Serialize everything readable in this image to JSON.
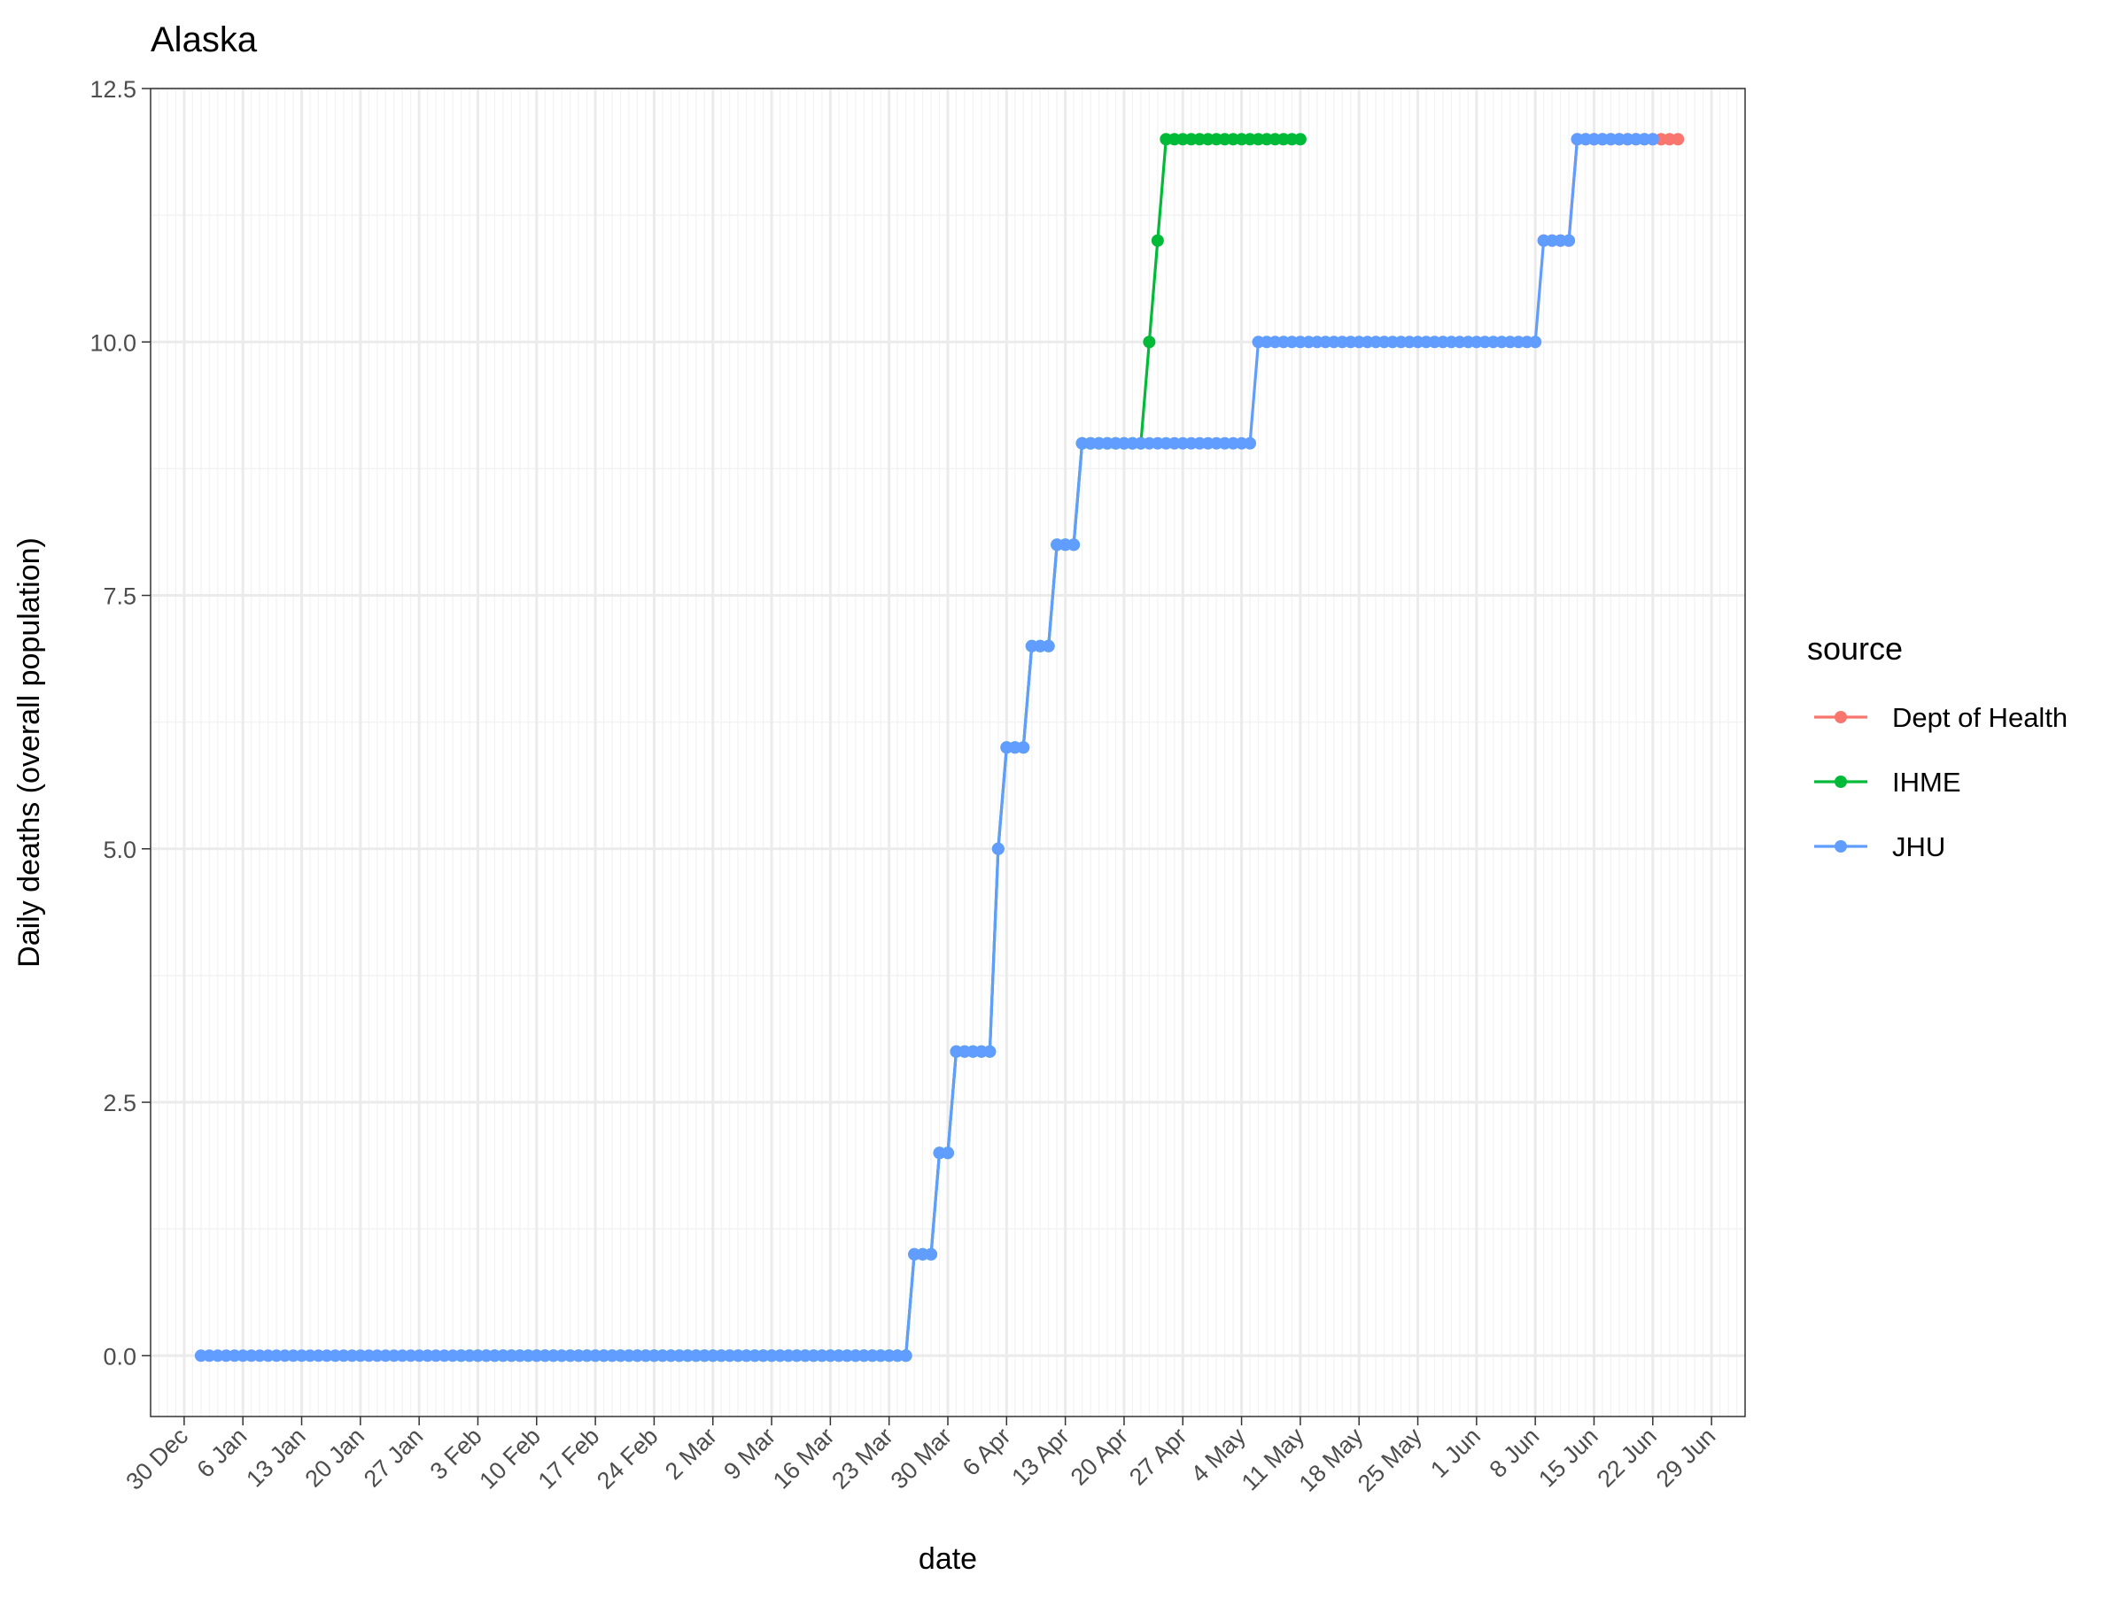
{
  "chart_data": {
    "type": "line",
    "title": "Alaska",
    "xlabel": "date",
    "ylabel": "Daily deaths (overall population)",
    "legend_title": "source",
    "legend_position": "right",
    "grid": true,
    "x_axis": {
      "type": "date",
      "range": [
        "2019-12-26",
        "2020-07-03"
      ],
      "ticks": [
        {
          "date": "2019-12-30",
          "label": "30 Dec"
        },
        {
          "date": "2020-01-06",
          "label": "6 Jan"
        },
        {
          "date": "2020-01-13",
          "label": "13 Jan"
        },
        {
          "date": "2020-01-20",
          "label": "20 Jan"
        },
        {
          "date": "2020-01-27",
          "label": "27 Jan"
        },
        {
          "date": "2020-02-03",
          "label": "3 Feb"
        },
        {
          "date": "2020-02-10",
          "label": "10 Feb"
        },
        {
          "date": "2020-02-17",
          "label": "17 Feb"
        },
        {
          "date": "2020-02-24",
          "label": "24 Feb"
        },
        {
          "date": "2020-03-02",
          "label": "2 Mar"
        },
        {
          "date": "2020-03-09",
          "label": "9 Mar"
        },
        {
          "date": "2020-03-16",
          "label": "16 Mar"
        },
        {
          "date": "2020-03-23",
          "label": "23 Mar"
        },
        {
          "date": "2020-03-30",
          "label": "30 Mar"
        },
        {
          "date": "2020-04-06",
          "label": "6 Apr"
        },
        {
          "date": "2020-04-13",
          "label": "13 Apr"
        },
        {
          "date": "2020-04-20",
          "label": "20 Apr"
        },
        {
          "date": "2020-04-27",
          "label": "27 Apr"
        },
        {
          "date": "2020-05-04",
          "label": "4 May"
        },
        {
          "date": "2020-05-11",
          "label": "11 May"
        },
        {
          "date": "2020-05-18",
          "label": "18 May"
        },
        {
          "date": "2020-05-25",
          "label": "25 May"
        },
        {
          "date": "2020-06-01",
          "label": "1 Jun"
        },
        {
          "date": "2020-06-08",
          "label": "8 Jun"
        },
        {
          "date": "2020-06-15",
          "label": "15 Jun"
        },
        {
          "date": "2020-06-22",
          "label": "22 Jun"
        },
        {
          "date": "2020-06-29",
          "label": "29 Jun"
        }
      ]
    },
    "y_axis": {
      "range": [
        -0.6,
        12.5
      ],
      "ticks": [
        {
          "value": 0,
          "label": "0.0"
        },
        {
          "value": 2.5,
          "label": "2.5"
        },
        {
          "value": 5,
          "label": "5.0"
        },
        {
          "value": 7.5,
          "label": "7.5"
        },
        {
          "value": 10,
          "label": "10.0"
        },
        {
          "value": 12.5,
          "label": "12.5"
        }
      ]
    },
    "series": [
      {
        "name": "Dept of Health",
        "color": "#F8766D",
        "segments": [
          {
            "start": "2020-06-09",
            "end": "2020-06-12",
            "value": 11
          },
          {
            "start": "2020-06-13",
            "end": "2020-06-25",
            "value": 12
          }
        ]
      },
      {
        "name": "IHME",
        "color": "#00BA38",
        "segments": [
          {
            "start": "2020-02-01",
            "end": "2020-03-25",
            "value": 0
          },
          {
            "start": "2020-03-26",
            "end": "2020-03-28",
            "value": 1
          },
          {
            "start": "2020-03-29",
            "end": "2020-03-30",
            "value": 2
          },
          {
            "start": "2020-03-31",
            "end": "2020-04-04",
            "value": 3
          },
          {
            "start": "2020-04-05",
            "end": "2020-04-05",
            "value": 5
          },
          {
            "start": "2020-04-06",
            "end": "2020-04-08",
            "value": 6
          },
          {
            "start": "2020-04-09",
            "end": "2020-04-11",
            "value": 7
          },
          {
            "start": "2020-04-12",
            "end": "2020-04-14",
            "value": 8
          },
          {
            "start": "2020-04-15",
            "end": "2020-04-22",
            "value": 9
          },
          {
            "start": "2020-04-23",
            "end": "2020-04-23",
            "value": 10
          },
          {
            "start": "2020-04-24",
            "end": "2020-04-24",
            "value": 11
          },
          {
            "start": "2020-04-25",
            "end": "2020-05-11",
            "value": 12
          }
        ]
      },
      {
        "name": "JHU",
        "color": "#619CFF",
        "segments": [
          {
            "start": "2020-01-01",
            "end": "2020-03-25",
            "value": 0
          },
          {
            "start": "2020-03-26",
            "end": "2020-03-28",
            "value": 1
          },
          {
            "start": "2020-03-29",
            "end": "2020-03-30",
            "value": 2
          },
          {
            "start": "2020-03-31",
            "end": "2020-04-04",
            "value": 3
          },
          {
            "start": "2020-04-05",
            "end": "2020-04-05",
            "value": 5
          },
          {
            "start": "2020-04-06",
            "end": "2020-04-08",
            "value": 6
          },
          {
            "start": "2020-04-09",
            "end": "2020-04-11",
            "value": 7
          },
          {
            "start": "2020-04-12",
            "end": "2020-04-14",
            "value": 8
          },
          {
            "start": "2020-04-15",
            "end": "2020-05-05",
            "value": 9
          },
          {
            "start": "2020-05-06",
            "end": "2020-06-08",
            "value": 10
          },
          {
            "start": "2020-06-09",
            "end": "2020-06-12",
            "value": 11
          },
          {
            "start": "2020-06-13",
            "end": "2020-06-22",
            "value": 12
          }
        ]
      }
    ]
  }
}
